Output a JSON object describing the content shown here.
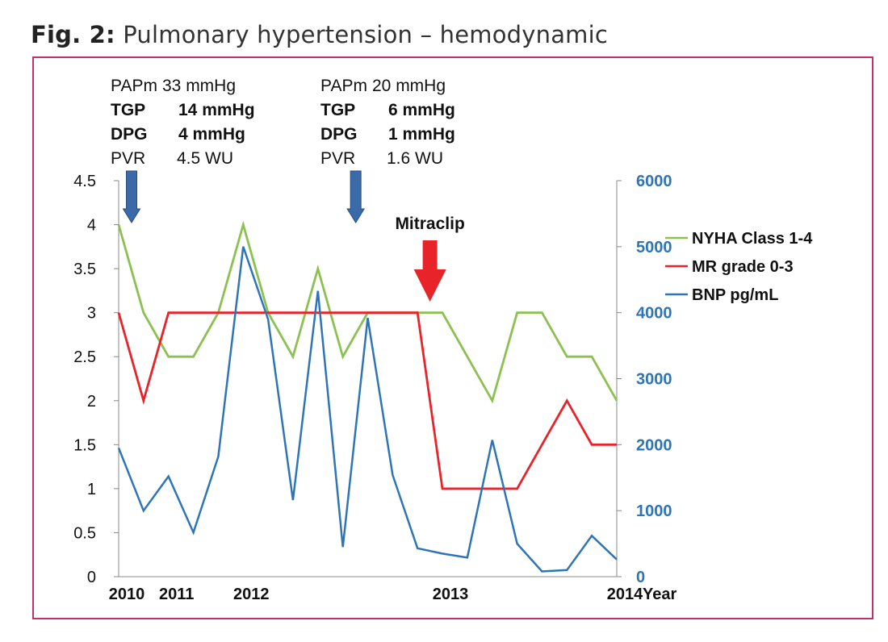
{
  "figure": {
    "label": "Fig. 2:",
    "title": "Pulmonary hypertension – hemodynamic"
  },
  "annotations": {
    "left": [
      {
        "key": "PAPm",
        "value": "33 mmHg",
        "bold": false
      },
      {
        "key": "TGP",
        "value": "14 mmHg",
        "bold": true
      },
      {
        "key": "DPG",
        "value": "4 mmHg",
        "bold": true
      },
      {
        "key": "PVR",
        "value": "4.5 WU",
        "bold": false
      }
    ],
    "right": [
      {
        "key": "PAPm",
        "value": "20 mmHg",
        "bold": false
      },
      {
        "key": "TGP",
        "value": "6 mmHg",
        "bold": true
      },
      {
        "key": "DPG",
        "value": "1 mmHg",
        "bold": true
      },
      {
        "key": "PVR",
        "value": "1.6 WU",
        "bold": false
      }
    ],
    "event_label": "Mitraclip"
  },
  "colors": {
    "nyha": "#8cc152",
    "mr": "#e8232a",
    "bnp": "#2e75b6",
    "right_axis_text": "#2e75b6",
    "arrow_blue": "#3a6aa8",
    "arrow_red": "#e8232a",
    "frame": "#c2306a"
  },
  "chart_data": {
    "type": "line",
    "xlabel": "Year",
    "x_tick_labels": [
      "2010",
      "2011",
      "2012",
      "2013",
      "2014"
    ],
    "x_tick_positions": [
      0,
      2,
      5,
      13,
      20
    ],
    "left_axis": {
      "ylim": [
        0,
        4.5
      ],
      "ticks": [
        "0",
        "0.5",
        "1",
        "1.5",
        "2",
        "2.5",
        "3",
        "3.5",
        "4",
        "4.5"
      ]
    },
    "right_axis": {
      "ylim": [
        0,
        6000
      ],
      "ticks": [
        "0",
        "1000",
        "2000",
        "3000",
        "4000",
        "5000",
        "6000"
      ]
    },
    "grid": false,
    "legend_position": "right",
    "series": [
      {
        "name": "NYHA Class 1-4",
        "axis": "left",
        "color": "#8cc152",
        "x": [
          0,
          1,
          2,
          3,
          4,
          5,
          6,
          7,
          8,
          9,
          10,
          11,
          12,
          13,
          14,
          15,
          16,
          17,
          18,
          19,
          20
        ],
        "values": [
          4,
          3,
          2.5,
          2.5,
          3,
          4,
          3,
          2.5,
          3.5,
          2.5,
          3,
          3,
          3,
          3,
          2.5,
          2,
          3,
          3,
          2.5,
          2.5,
          2
        ]
      },
      {
        "name": "MR grade 0-3",
        "axis": "left",
        "color": "#e8232a",
        "x": [
          0,
          1,
          2,
          3,
          4,
          5,
          6,
          7,
          8,
          9,
          10,
          11,
          12,
          13,
          14,
          15,
          16,
          17,
          18,
          19,
          20
        ],
        "values": [
          3,
          2,
          3,
          3,
          3,
          3,
          3,
          3,
          3,
          3,
          3,
          3,
          3,
          1,
          1,
          1,
          1,
          1.5,
          2,
          1.5,
          1.5
        ]
      },
      {
        "name": "BNP pg/mL",
        "axis": "right",
        "color": "#2e75b6",
        "x": [
          0,
          1,
          2,
          3,
          4,
          5,
          6,
          7,
          8,
          9,
          10,
          11,
          12,
          13,
          14,
          15,
          16,
          17,
          18,
          19,
          20
        ],
        "values": [
          1950,
          1000,
          1520,
          670,
          1820,
          5000,
          3900,
          1160,
          4330,
          450,
          3920,
          1540,
          430,
          350,
          290,
          2070,
          500,
          80,
          100,
          620,
          260
        ]
      }
    ],
    "markers": [
      {
        "type": "arrow",
        "color": "blue",
        "x": 0,
        "label_group": "left"
      },
      {
        "type": "arrow",
        "color": "blue",
        "x": 9,
        "label_group": "right"
      },
      {
        "type": "arrow",
        "color": "red",
        "x": 12.5,
        "label": "Mitraclip"
      }
    ]
  }
}
